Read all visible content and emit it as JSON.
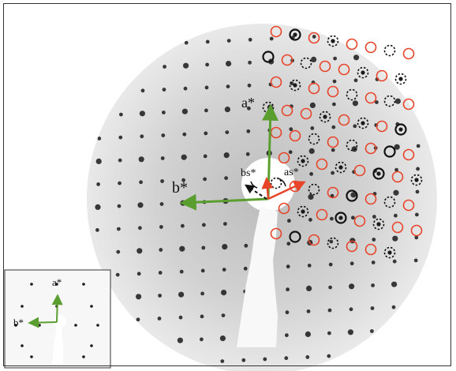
{
  "figure": {
    "labels": {
      "a_star": "a*",
      "b_star": "b*",
      "as_star": "as*",
      "bs_star": "bs*",
      "inset_a_star": "a*",
      "inset_b_star": "b*"
    },
    "colors": {
      "arrow_green": "#5a9e2f",
      "arrow_red": "#e8442a",
      "circle_red": "#e8442a",
      "circle_black": "#111111",
      "spot_dark": "#1a1a1a",
      "background_haze": "#d8d8d8"
    },
    "legend_markers": [
      "red-open-circle",
      "black-dashed-circle",
      "black-solid-circle"
    ]
  }
}
